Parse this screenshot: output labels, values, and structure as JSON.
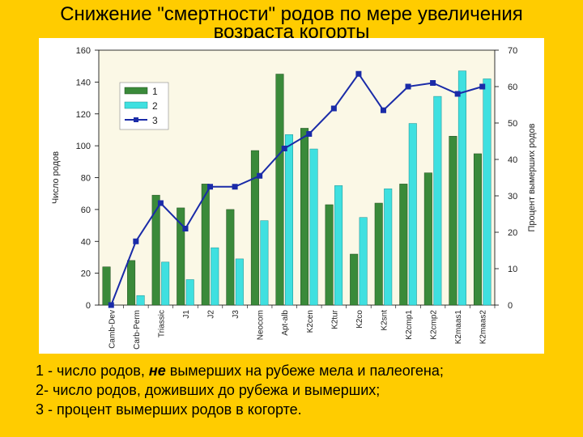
{
  "page": {
    "title_line1": "Снижение \"смертности\" родов по мере увеличения",
    "title_line2": "возраста когорты"
  },
  "colors": {
    "background": "#FFCC00",
    "plot_bg": "#FBF8E6",
    "bar1": "#3A8A3A",
    "bar2": "#3FE0E0",
    "line": "#1A2BA8"
  },
  "chart_data": {
    "type": "bar",
    "categories": [
      "Camb-Dev",
      "Carb-Perm",
      "Triassic",
      "J1",
      "J2",
      "J3",
      "Neocom",
      "Apt-alb",
      "K2cen",
      "K2tur",
      "K2co",
      "K2snt",
      "K2cmp1",
      "K2cmp2",
      "K2maas1",
      "K2maas2"
    ],
    "series": [
      {
        "name": "1",
        "type": "bar",
        "axis": "left",
        "values": [
          24,
          28,
          69,
          61,
          76,
          60,
          97,
          145,
          111,
          63,
          32,
          64,
          76,
          83,
          106,
          95
        ]
      },
      {
        "name": "2",
        "type": "bar",
        "axis": "left",
        "values": [
          0,
          6,
          27,
          16,
          36,
          29,
          53,
          107,
          98,
          75,
          55,
          73,
          114,
          131,
          147,
          142
        ]
      },
      {
        "name": "3",
        "type": "line",
        "axis": "right",
        "values": [
          0,
          17.5,
          28,
          21,
          32.5,
          32.5,
          35.5,
          43,
          47,
          54,
          63.5,
          53.5,
          60,
          61,
          58,
          60
        ]
      }
    ],
    "ylabel": "Число родов",
    "ylim": [
      0,
      160
    ],
    "yticks": [
      0,
      20,
      40,
      60,
      80,
      100,
      120,
      140,
      160
    ],
    "y2label": "Процент вымерших родов",
    "y2lim": [
      0,
      70
    ],
    "y2ticks": [
      0,
      10,
      20,
      30,
      40,
      50,
      60,
      70
    ],
    "legend": [
      "1",
      "2",
      "3"
    ],
    "legend_position": "top-left",
    "grid": false
  },
  "notes": {
    "line1_prefix": "1 - число родов, ",
    "line1_emph": "не",
    "line1_suffix": " вымерших на рубеже мела и палеогена;",
    "line2": "2- число родов, доживших до рубежа и вымерших;",
    "line3": "3 - процент вымерших родов в когорте."
  }
}
